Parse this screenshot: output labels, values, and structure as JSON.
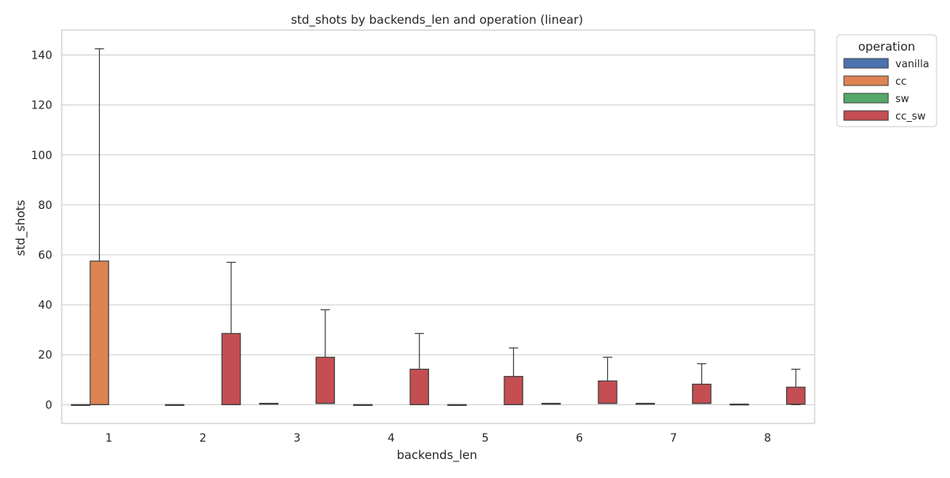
{
  "chart_data": {
    "type": "box",
    "title": "std_shots by backends_len and operation (linear)",
    "xlabel": "backends_len",
    "ylabel": "std_shots",
    "ylim": [
      -7.5,
      150
    ],
    "yticks": [
      0,
      20,
      40,
      60,
      80,
      100,
      120,
      140
    ],
    "grid": true,
    "legend": {
      "title": "operation",
      "placement": "outside-top-right"
    },
    "categories": [
      "1",
      "2",
      "3",
      "4",
      "5",
      "6",
      "7",
      "8"
    ],
    "series": [
      {
        "name": "vanilla",
        "color": "#4c72b0",
        "boxes": [
          {
            "category": "1",
            "whislo": 0,
            "q1": 0,
            "med": 0,
            "q3": 0,
            "whishi": 0
          },
          {
            "category": "2",
            "whislo": 0,
            "q1": 0,
            "med": 0,
            "q3": 0,
            "whishi": 0
          },
          {
            "category": "3",
            "whislo": 0.5,
            "q1": 0.5,
            "med": 0.5,
            "q3": 0.5,
            "whishi": 0.5
          },
          {
            "category": "4",
            "whislo": 0,
            "q1": 0,
            "med": 0,
            "q3": 0,
            "whishi": 0
          },
          {
            "category": "5",
            "whislo": 0,
            "q1": 0,
            "med": 0,
            "q3": 0,
            "whishi": 0
          },
          {
            "category": "6",
            "whislo": 0.5,
            "q1": 0.5,
            "med": 0.5,
            "q3": 0.5,
            "whishi": 0.5
          },
          {
            "category": "7",
            "whislo": 0.5,
            "q1": 0.5,
            "med": 0.5,
            "q3": 0.5,
            "whishi": 0.5
          },
          {
            "category": "8",
            "whislo": 0.2,
            "q1": 0.2,
            "med": 0.2,
            "q3": 0.2,
            "whishi": 0.2
          }
        ]
      },
      {
        "name": "cc",
        "color": "#dd8452",
        "boxes": [
          {
            "category": "1",
            "whislo": 0,
            "q1": 0,
            "med": 0,
            "q3": 57.5,
            "whishi": 142.5
          }
        ]
      },
      {
        "name": "sw",
        "color": "#55a868",
        "boxes": []
      },
      {
        "name": "cc_sw",
        "color": "#c44e52",
        "boxes": [
          {
            "category": "2",
            "whislo": 0,
            "q1": 0,
            "med": 0,
            "q3": 28.5,
            "whishi": 57
          },
          {
            "category": "3",
            "whislo": 0.5,
            "q1": 0.5,
            "med": 0.5,
            "q3": 19,
            "whishi": 38
          },
          {
            "category": "4",
            "whislo": 0,
            "q1": 0,
            "med": 0,
            "q3": 14.2,
            "whishi": 28.5
          },
          {
            "category": "5",
            "whislo": 0,
            "q1": 0,
            "med": 0,
            "q3": 11.3,
            "whishi": 22.7
          },
          {
            "category": "6",
            "whislo": 0.5,
            "q1": 0.5,
            "med": 0.5,
            "q3": 9.5,
            "whishi": 19
          },
          {
            "category": "7",
            "whislo": 0.5,
            "q1": 0.5,
            "med": 0.5,
            "q3": 8.2,
            "whishi": 16.4
          },
          {
            "category": "8",
            "whislo": 0,
            "q1": 0.2,
            "med": 0.2,
            "q3": 7,
            "whishi": 14.2
          }
        ]
      }
    ]
  }
}
